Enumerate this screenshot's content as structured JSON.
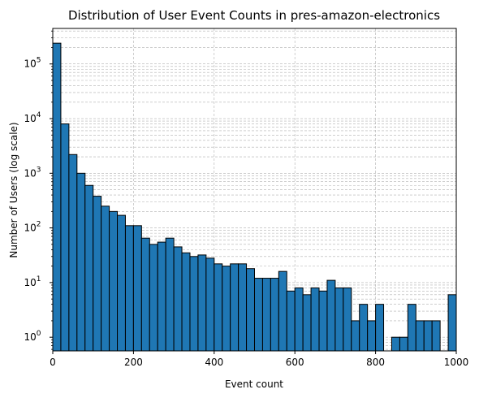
{
  "chart_data": {
    "type": "bar",
    "title": "Distribution of User Event Counts in pres-amazon-electronics",
    "xlabel": "Event count",
    "ylabel": "Number of Users (log scale)",
    "xlim": [
      0,
      1000
    ],
    "ylim_log10": [
      -0.25,
      5.65
    ],
    "y_scale": "log",
    "grid": true,
    "bar_color": "#1f77b4",
    "edge_color": "#000000",
    "bin_width": 20,
    "bin_starts": [
      0,
      20,
      40,
      60,
      80,
      100,
      120,
      140,
      160,
      180,
      200,
      220,
      240,
      260,
      280,
      300,
      320,
      340,
      360,
      380,
      400,
      420,
      440,
      460,
      480,
      500,
      520,
      540,
      560,
      580,
      600,
      620,
      640,
      660,
      680,
      700,
      720,
      740,
      760,
      780,
      800,
      820,
      840,
      860,
      880,
      900,
      920,
      940,
      960,
      980
    ],
    "values": [
      240000,
      8000,
      2200,
      1000,
      600,
      380,
      250,
      200,
      170,
      110,
      110,
      65,
      50,
      55,
      65,
      45,
      35,
      30,
      32,
      28,
      22,
      20,
      22,
      22,
      18,
      12,
      12,
      12,
      16,
      7,
      8,
      6,
      8,
      7,
      11,
      8,
      8,
      2,
      4,
      2,
      4,
      0,
      1,
      1,
      4,
      2,
      2,
      2,
      0,
      6
    ],
    "x_ticks": [
      0,
      200,
      400,
      600,
      800,
      1000
    ],
    "x_tick_labels": [
      "0",
      "200",
      "400",
      "600",
      "800",
      "1000"
    ],
    "y_ticks_exp": [
      0,
      1,
      2,
      3,
      4,
      5
    ]
  }
}
